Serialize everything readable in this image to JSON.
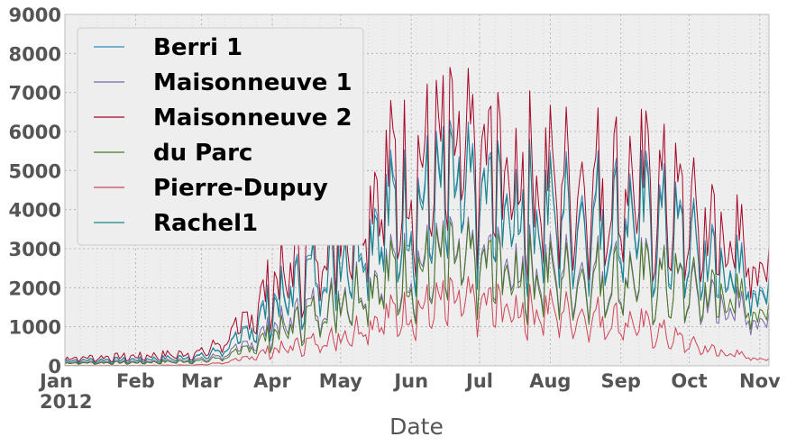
{
  "chart_data": {
    "type": "line",
    "title": "",
    "xlabel": "Date",
    "ylabel": "",
    "xlim": [
      "2012-01-01",
      "2012-11-05"
    ],
    "ylim": [
      0,
      9000
    ],
    "y_ticks": [
      0,
      1000,
      2000,
      3000,
      4000,
      5000,
      6000,
      7000,
      8000,
      9000
    ],
    "x_ticks": [
      {
        "date": "2012-01-01",
        "label": "Jan",
        "sublabel": "2012"
      },
      {
        "date": "2012-02-01",
        "label": "Feb"
      },
      {
        "date": "2012-03-01",
        "label": "Mar"
      },
      {
        "date": "2012-04-01",
        "label": "Apr"
      },
      {
        "date": "2012-05-01",
        "label": "May"
      },
      {
        "date": "2012-06-01",
        "label": "Jun"
      },
      {
        "date": "2012-07-01",
        "label": "Jul"
      },
      {
        "date": "2012-08-01",
        "label": "Aug"
      },
      {
        "date": "2012-09-01",
        "label": "Sep"
      },
      {
        "date": "2012-10-01",
        "label": "Oct"
      },
      {
        "date": "2012-11-01",
        "label": "Nov"
      }
    ],
    "grid": true,
    "legend_position": "top-left",
    "background": "#eeeeee",
    "series": [
      {
        "name": "Berri 1",
        "color": "#348abd",
        "monthly_levels": [
          [
            "2012-01-01",
            180
          ],
          [
            "2012-02-01",
            200
          ],
          [
            "2012-03-01",
            300
          ],
          [
            "2012-03-15",
            700
          ],
          [
            "2012-04-01",
            2000
          ],
          [
            "2012-04-15",
            2800
          ],
          [
            "2012-05-01",
            3800
          ],
          [
            "2012-05-15",
            4800
          ],
          [
            "2012-06-01",
            5200
          ],
          [
            "2012-06-15",
            5600
          ],
          [
            "2012-07-01",
            5400
          ],
          [
            "2012-07-15",
            5300
          ],
          [
            "2012-08-01",
            5000
          ],
          [
            "2012-08-15",
            5100
          ],
          [
            "2012-09-01",
            5000
          ],
          [
            "2012-09-15",
            4900
          ],
          [
            "2012-10-01",
            3900
          ],
          [
            "2012-10-15",
            3300
          ],
          [
            "2012-11-05",
            2500
          ]
        ]
      },
      {
        "name": "Maisonneuve 1",
        "color": "#7a68a6",
        "monthly_levels": [
          [
            "2012-01-01",
            120
          ],
          [
            "2012-02-01",
            130
          ],
          [
            "2012-03-01",
            200
          ],
          [
            "2012-03-15",
            450
          ],
          [
            "2012-04-01",
            1200
          ],
          [
            "2012-04-15",
            1700
          ],
          [
            "2012-05-01",
            2300
          ],
          [
            "2012-05-15",
            2900
          ],
          [
            "2012-06-01",
            3200
          ],
          [
            "2012-06-15",
            3400
          ],
          [
            "2012-07-01",
            3300
          ],
          [
            "2012-07-15",
            3300
          ],
          [
            "2012-08-01",
            3100
          ],
          [
            "2012-08-15",
            3100
          ],
          [
            "2012-09-01",
            3000
          ],
          [
            "2012-09-15",
            2900
          ],
          [
            "2012-10-01",
            2400
          ],
          [
            "2012-10-15",
            2000
          ],
          [
            "2012-11-05",
            1500
          ]
        ]
      },
      {
        "name": "Maisonneuve 2",
        "color": "#a60628",
        "monthly_levels": [
          [
            "2012-01-01",
            250
          ],
          [
            "2012-02-01",
            300
          ],
          [
            "2012-03-01",
            420
          ],
          [
            "2012-03-15",
            1000
          ],
          [
            "2012-04-01",
            2600
          ],
          [
            "2012-04-15",
            3600
          ],
          [
            "2012-05-01",
            4800
          ],
          [
            "2012-05-15",
            5900
          ],
          [
            "2012-06-01",
            6400
          ],
          [
            "2012-06-15",
            6800
          ],
          [
            "2012-07-01",
            6600
          ],
          [
            "2012-07-15",
            6400
          ],
          [
            "2012-08-01",
            6100
          ],
          [
            "2012-08-15",
            6100
          ],
          [
            "2012-09-01",
            6000
          ],
          [
            "2012-09-15",
            5800
          ],
          [
            "2012-10-01",
            4800
          ],
          [
            "2012-10-15",
            4300
          ],
          [
            "2012-11-05",
            3300
          ]
        ]
      },
      {
        "name": "du Parc",
        "color": "#467821",
        "monthly_levels": [
          [
            "2012-01-01",
            90
          ],
          [
            "2012-02-01",
            100
          ],
          [
            "2012-03-01",
            150
          ],
          [
            "2012-03-15",
            350
          ],
          [
            "2012-04-01",
            1000
          ],
          [
            "2012-04-15",
            1500
          ],
          [
            "2012-05-01",
            2200
          ],
          [
            "2012-05-15",
            2800
          ],
          [
            "2012-06-01",
            3000
          ],
          [
            "2012-06-15",
            3300
          ],
          [
            "2012-07-01",
            3200
          ],
          [
            "2012-07-15",
            3100
          ],
          [
            "2012-08-01",
            2900
          ],
          [
            "2012-08-15",
            2900
          ],
          [
            "2012-09-01",
            2900
          ],
          [
            "2012-09-15",
            2800
          ],
          [
            "2012-10-01",
            2500
          ],
          [
            "2012-10-15",
            2300
          ],
          [
            "2012-11-05",
            1800
          ]
        ]
      },
      {
        "name": "Pierre-Dupuy",
        "color": "#cf4457",
        "monthly_levels": [
          [
            "2012-01-01",
            10
          ],
          [
            "2012-02-01",
            10
          ],
          [
            "2012-03-01",
            30
          ],
          [
            "2012-03-15",
            150
          ],
          [
            "2012-04-01",
            500
          ],
          [
            "2012-04-15",
            700
          ],
          [
            "2012-05-01",
            1000
          ],
          [
            "2012-05-15",
            1500
          ],
          [
            "2012-06-01",
            1800
          ],
          [
            "2012-06-15",
            2000
          ],
          [
            "2012-07-01",
            2000
          ],
          [
            "2012-07-15",
            1900
          ],
          [
            "2012-08-01",
            1800
          ],
          [
            "2012-08-15",
            1700
          ],
          [
            "2012-09-01",
            1500
          ],
          [
            "2012-09-15",
            1200
          ],
          [
            "2012-10-01",
            700
          ],
          [
            "2012-10-15",
            450
          ],
          [
            "2012-11-05",
            200
          ]
        ]
      },
      {
        "name": "Rachel1",
        "color": "#188487",
        "monthly_levels": [
          [
            "2012-01-01",
            170
          ],
          [
            "2012-02-01",
            190
          ],
          [
            "2012-03-01",
            290
          ],
          [
            "2012-03-15",
            680
          ],
          [
            "2012-04-01",
            1900
          ],
          [
            "2012-04-15",
            2700
          ],
          [
            "2012-05-01",
            3700
          ],
          [
            "2012-05-15",
            4600
          ],
          [
            "2012-06-01",
            5000
          ],
          [
            "2012-06-15",
            5400
          ],
          [
            "2012-07-01",
            5300
          ],
          [
            "2012-07-15",
            5200
          ],
          [
            "2012-08-01",
            4900
          ],
          [
            "2012-08-15",
            4900
          ],
          [
            "2012-09-01",
            4800
          ],
          [
            "2012-09-15",
            4700
          ],
          [
            "2012-10-01",
            3800
          ],
          [
            "2012-10-15",
            3200
          ],
          [
            "2012-11-05",
            2400
          ]
        ]
      }
    ]
  }
}
